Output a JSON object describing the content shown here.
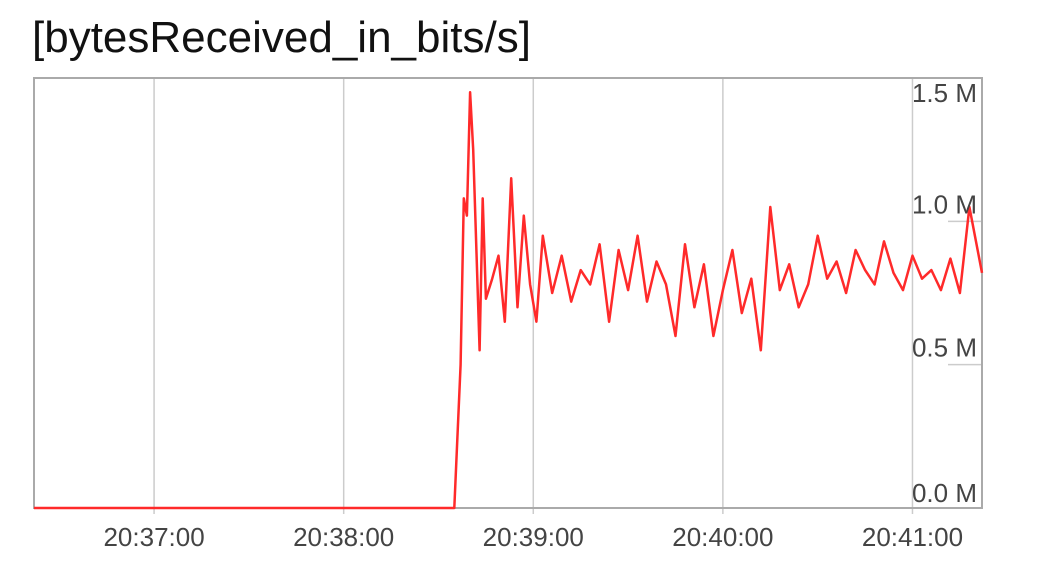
{
  "chart_data": {
    "type": "line",
    "title": "[bytesReceived_in_bits/s]",
    "xlabel": "",
    "ylabel": "",
    "x_ticks": [
      "20:37:00",
      "20:38:00",
      "20:39:00",
      "20:40:00",
      "20:41:00"
    ],
    "y_ticks": [
      "0.0 M",
      "0.5 M",
      "1.0 M",
      "1.5 M"
    ],
    "y_tick_values": [
      0,
      500000,
      1000000,
      1500000
    ],
    "xlim": [
      "20:36:22",
      "20:41:22"
    ],
    "ylim": [
      0,
      1500000
    ],
    "grid": true,
    "legend": "none",
    "colors": {
      "series": "#ff2a2a",
      "grid": "#cccccc",
      "frame": "#aaaaaa"
    },
    "series": [
      {
        "x": [
          "20:36:22",
          "20:38:35",
          "20:38:37",
          "20:38:38",
          "20:38:39",
          "20:38:40",
          "20:38:41",
          "20:38:43",
          "20:38:44",
          "20:38:45",
          "20:38:47",
          "20:38:49",
          "20:38:51",
          "20:38:53",
          "20:38:55",
          "20:38:57",
          "20:38:59",
          "20:39:01",
          "20:39:03",
          "20:39:06",
          "20:39:09",
          "20:39:12",
          "20:39:15",
          "20:39:18",
          "20:39:21",
          "20:39:24",
          "20:39:27",
          "20:39:30",
          "20:39:33",
          "20:39:36",
          "20:39:39",
          "20:39:42",
          "20:39:45",
          "20:39:48",
          "20:39:51",
          "20:39:54",
          "20:39:57",
          "20:40:00",
          "20:40:03",
          "20:40:06",
          "20:40:09",
          "20:40:12",
          "20:40:15",
          "20:40:18",
          "20:40:21",
          "20:40:24",
          "20:40:27",
          "20:40:30",
          "20:40:33",
          "20:40:36",
          "20:40:39",
          "20:40:42",
          "20:40:45",
          "20:40:48",
          "20:40:51",
          "20:40:54",
          "20:40:57",
          "20:41:00",
          "20:41:03",
          "20:41:06",
          "20:41:09",
          "20:41:12",
          "20:41:15",
          "20:41:18",
          "20:41:22"
        ],
        "values": [
          0,
          0,
          500000,
          1080000,
          1020000,
          1450000,
          1250000,
          550000,
          1080000,
          730000,
          800000,
          880000,
          650000,
          1150000,
          700000,
          1020000,
          780000,
          650000,
          950000,
          750000,
          880000,
          720000,
          830000,
          780000,
          920000,
          650000,
          900000,
          760000,
          950000,
          720000,
          860000,
          780000,
          600000,
          920000,
          700000,
          850000,
          600000,
          760000,
          900000,
          680000,
          800000,
          550000,
          1050000,
          760000,
          850000,
          700000,
          780000,
          950000,
          800000,
          860000,
          750000,
          900000,
          830000,
          780000,
          930000,
          820000,
          760000,
          880000,
          800000,
          830000,
          760000,
          870000,
          750000,
          1050000,
          820000
        ]
      }
    ]
  }
}
